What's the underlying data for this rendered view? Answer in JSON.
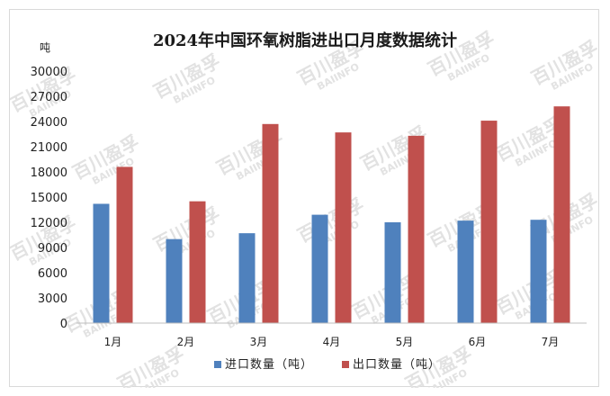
{
  "chart_data": {
    "type": "bar",
    "title": "2024年中国环氧树脂进出口月度数据统计",
    "ylabel": "吨",
    "ylim": [
      0,
      30000
    ],
    "yticks": [
      0,
      3000,
      6000,
      9000,
      12000,
      15000,
      18000,
      21000,
      24000,
      27000,
      30000
    ],
    "categories": [
      "1月",
      "2月",
      "3月",
      "4月",
      "5月",
      "6月",
      "7月"
    ],
    "series": [
      {
        "name": "进口数量（吨）",
        "color": "#4f81bd",
        "values": [
          14200,
          10000,
          10700,
          12900,
          12000,
          12200,
          12300
        ]
      },
      {
        "name": "出口数量（吨）",
        "color": "#c0504d",
        "values": [
          18600,
          14500,
          23700,
          22700,
          22300,
          24100,
          25800
        ]
      }
    ],
    "grid": false,
    "legend_position": "bottom"
  },
  "watermark": {
    "cn": "百川盈孚",
    "en": "BAIINFO"
  }
}
